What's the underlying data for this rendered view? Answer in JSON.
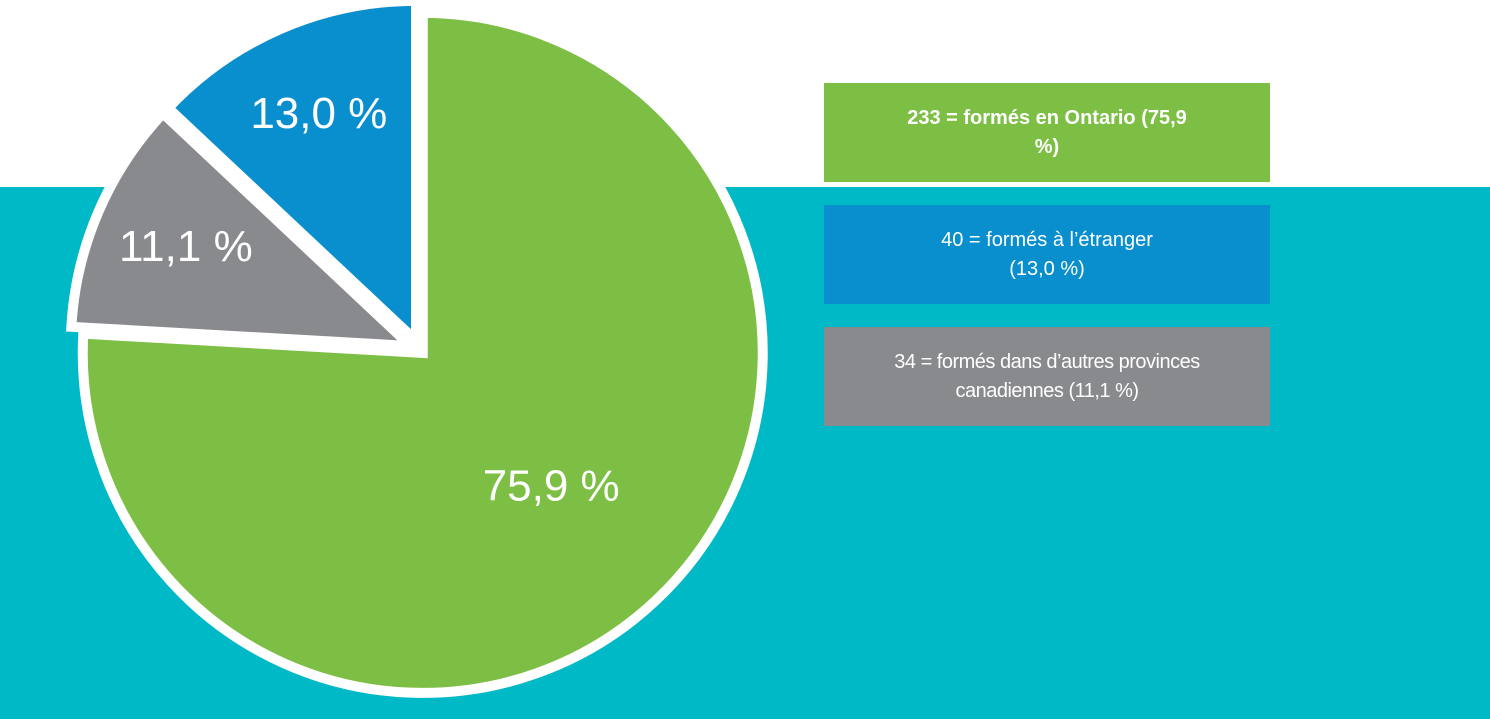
{
  "chart_data": {
    "type": "pie",
    "categories": [
      "233 = formés en Ontario (75,9 %)",
      "34 = formés dans d’autres provinces canadiennes (11,1 %)",
      "40 = formés à l’étranger (13,0 %)"
    ],
    "values": [
      75.9,
      11.1,
      13.0
    ],
    "value_labels": [
      "75,9 %",
      "11,1 %",
      "13,0 %"
    ],
    "colors": [
      "#7dbf44",
      "#898a8d",
      "#0a8fce"
    ],
    "legend_order": [
      0,
      2,
      1
    ]
  }
}
